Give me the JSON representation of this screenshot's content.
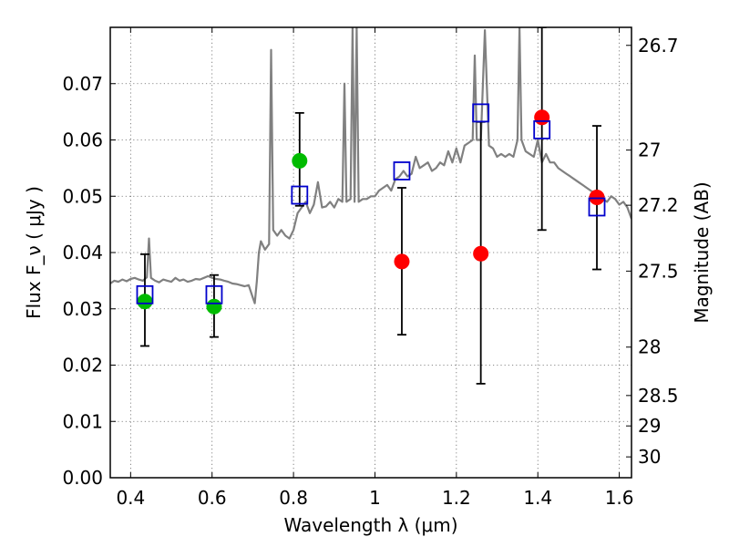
{
  "chart_data": {
    "type": "scatter",
    "title": "",
    "xlabel": "Wavelength  λ (μm)",
    "ylabel": "Flux  F_ν  ( μJy )",
    "y2label": "Magnitude (AB)",
    "xlim": [
      0.35,
      1.63
    ],
    "ylim": [
      0.0,
      0.08
    ],
    "xticks": [
      0.4,
      0.6,
      0.8,
      1.0,
      1.2,
      1.4,
      1.6
    ],
    "xtick_labels": [
      "0.4",
      "0.6",
      "0.8",
      "1",
      "1.2",
      "1.4",
      "1.6"
    ],
    "yticks": [
      0.0,
      0.01,
      0.02,
      0.03,
      0.04,
      0.05,
      0.06,
      0.07
    ],
    "ytick_labels": [
      "0.00",
      "0.01",
      "0.02",
      "0.03",
      "0.04",
      "0.05",
      "0.06",
      "0.07"
    ],
    "y2ticks": [
      {
        "label": "26.7",
        "flux": 0.0768
      },
      {
        "label": "27",
        "flux": 0.0582
      },
      {
        "label": "27.2",
        "flux": 0.0484
      },
      {
        "label": "27.5",
        "flux": 0.0367
      },
      {
        "label": "28",
        "flux": 0.0232
      },
      {
        "label": "28.5",
        "flux": 0.0146
      },
      {
        "label": "29",
        "flux": 0.0092
      },
      {
        "label": "30",
        "flux": 0.0037
      }
    ],
    "grid": true,
    "colors": {
      "spectrum": "#808080",
      "green": "#00bb00",
      "red": "#ff0000",
      "model_box": "#0000cc",
      "errorbar": "#000000"
    },
    "series": [
      {
        "kind": "spectrum",
        "x": [
          0.35,
          0.36,
          0.37,
          0.38,
          0.39,
          0.4,
          0.41,
          0.42,
          0.43,
          0.44,
          0.445,
          0.45,
          0.46,
          0.47,
          0.48,
          0.49,
          0.5,
          0.51,
          0.52,
          0.53,
          0.54,
          0.55,
          0.56,
          0.57,
          0.58,
          0.59,
          0.6,
          0.61,
          0.62,
          0.63,
          0.64,
          0.65,
          0.66,
          0.67,
          0.68,
          0.69,
          0.7,
          0.705,
          0.71,
          0.715,
          0.72,
          0.73,
          0.74,
          0.745,
          0.75,
          0.76,
          0.77,
          0.78,
          0.79,
          0.8,
          0.81,
          0.82,
          0.83,
          0.84,
          0.85,
          0.86,
          0.87,
          0.88,
          0.89,
          0.9,
          0.91,
          0.92,
          0.925,
          0.93,
          0.94,
          0.945,
          0.95,
          0.955,
          0.96,
          0.97,
          0.98,
          0.99,
          1.0,
          1.01,
          1.02,
          1.03,
          1.04,
          1.05,
          1.06,
          1.07,
          1.08,
          1.09,
          1.1,
          1.11,
          1.12,
          1.13,
          1.14,
          1.15,
          1.16,
          1.17,
          1.18,
          1.19,
          1.2,
          1.21,
          1.22,
          1.23,
          1.24,
          1.245,
          1.25,
          1.26,
          1.27,
          1.28,
          1.29,
          1.3,
          1.31,
          1.32,
          1.33,
          1.34,
          1.35,
          1.355,
          1.36,
          1.37,
          1.38,
          1.39,
          1.4,
          1.41,
          1.42,
          1.43,
          1.44,
          1.45,
          1.46,
          1.47,
          1.48,
          1.49,
          1.5,
          1.51,
          1.52,
          1.53,
          1.54,
          1.55,
          1.56,
          1.57,
          1.58,
          1.59,
          1.6,
          1.61,
          1.62,
          1.63
        ],
        "y": [
          0.0345,
          0.035,
          0.0348,
          0.0352,
          0.0349,
          0.0353,
          0.0355,
          0.0352,
          0.035,
          0.0356,
          0.0425,
          0.0355,
          0.035,
          0.0347,
          0.0352,
          0.035,
          0.0348,
          0.0355,
          0.035,
          0.0352,
          0.0348,
          0.035,
          0.0353,
          0.0352,
          0.0355,
          0.0358,
          0.0355,
          0.0353,
          0.0352,
          0.035,
          0.0348,
          0.0345,
          0.0344,
          0.0342,
          0.034,
          0.0342,
          0.032,
          0.031,
          0.035,
          0.04,
          0.042,
          0.0405,
          0.0415,
          0.076,
          0.044,
          0.043,
          0.044,
          0.043,
          0.0425,
          0.044,
          0.047,
          0.048,
          0.049,
          0.047,
          0.0485,
          0.0525,
          0.048,
          0.0482,
          0.049,
          0.048,
          0.0495,
          0.049,
          0.07,
          0.049,
          0.0495,
          0.08,
          0.049,
          0.08,
          0.049,
          0.0495,
          0.0495,
          0.05,
          0.05,
          0.051,
          0.0515,
          0.052,
          0.051,
          0.053,
          0.0535,
          0.0545,
          0.0535,
          0.054,
          0.057,
          0.055,
          0.0555,
          0.056,
          0.0545,
          0.055,
          0.056,
          0.0555,
          0.058,
          0.056,
          0.0585,
          0.056,
          0.059,
          0.0595,
          0.06,
          0.075,
          0.06,
          0.06,
          0.0795,
          0.059,
          0.0585,
          0.057,
          0.0575,
          0.057,
          0.0575,
          0.057,
          0.06,
          0.08,
          0.06,
          0.058,
          0.0575,
          0.057,
          0.06,
          0.056,
          0.0575,
          0.056,
          0.056,
          0.055,
          0.0545,
          0.054,
          0.0535,
          0.053,
          0.0525,
          0.052,
          0.0515,
          0.051,
          0.0505,
          0.05,
          0.0495,
          0.049,
          0.05,
          0.0495,
          0.0485,
          0.049,
          0.048,
          0.046
        ]
      },
      {
        "kind": "green",
        "x": [
          0.435,
          0.605,
          0.815
        ],
        "y": [
          0.0313,
          0.0304,
          0.0563
        ],
        "err": [
          [
            0.0234,
            0.0397
          ],
          [
            0.025,
            0.036
          ],
          [
            0.0483,
            0.0648
          ]
        ]
      },
      {
        "kind": "red",
        "x": [
          1.066,
          1.26,
          1.41,
          1.545
        ],
        "y": [
          0.0384,
          0.0398,
          0.064,
          0.0498
        ],
        "err": [
          [
            0.0254,
            0.0515
          ],
          [
            0.0167,
            0.0632
          ],
          [
            0.044,
            0.08
          ],
          [
            0.037,
            0.0625
          ]
        ]
      },
      {
        "kind": "model_box",
        "x": [
          0.435,
          0.605,
          0.815,
          1.066,
          1.26,
          1.41,
          1.545
        ],
        "y": [
          0.0325,
          0.0325,
          0.0502,
          0.0545,
          0.0648,
          0.0618,
          0.0481
        ]
      }
    ]
  }
}
